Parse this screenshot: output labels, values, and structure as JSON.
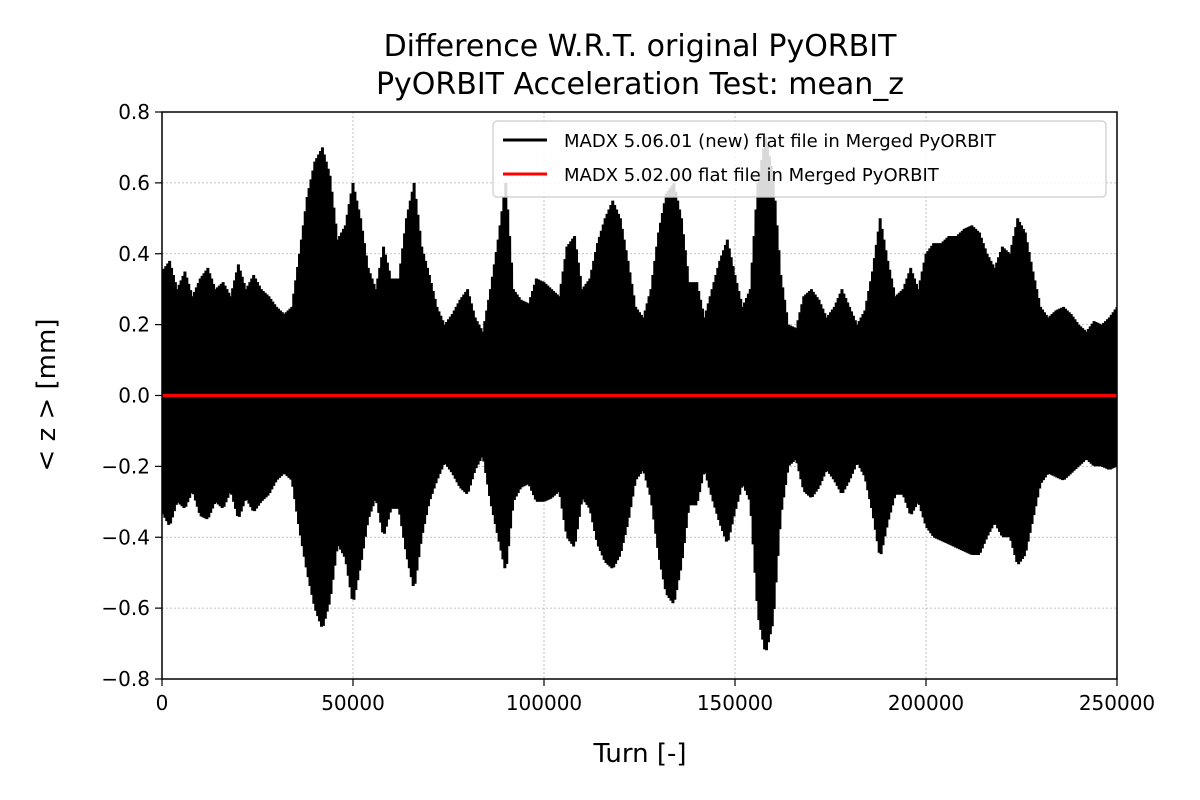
{
  "chart_data": {
    "type": "line",
    "title": "Difference W.R.T. original PyORBIT",
    "subtitle": "PyORBIT Acceleration Test: mean_z",
    "xlabel": "Turn [-]",
    "ylabel": "< z >  [mm]",
    "xlim": [
      0,
      250000
    ],
    "ylim": [
      -0.8,
      0.8
    ],
    "x_ticks": [
      0,
      50000,
      100000,
      150000,
      200000,
      250000
    ],
    "x_tick_labels": [
      "0",
      "50000",
      "100000",
      "150000",
      "200000",
      "250000"
    ],
    "y_ticks": [
      -0.8,
      -0.6,
      -0.4,
      -0.2,
      0.0,
      0.2,
      0.4,
      0.6,
      0.8
    ],
    "y_tick_labels": [
      "−0.8",
      "−0.6",
      "−0.4",
      "−0.2",
      "0.0",
      "0.2",
      "0.4",
      "0.6",
      "0.8"
    ],
    "grid": true,
    "legend_position": "top-right",
    "series": [
      {
        "name": "MADX 5.06.01 (new) flat file in Merged PyORBIT",
        "color": "#000000",
        "style": "oscillation-envelope",
        "envelope": {
          "x": [
            0,
            2000,
            4000,
            6000,
            8000,
            10000,
            12000,
            14000,
            16000,
            18000,
            20000,
            22000,
            24000,
            26000,
            28000,
            30000,
            32000,
            34000,
            36000,
            38000,
            40000,
            42000,
            44000,
            46000,
            48000,
            50000,
            52000,
            54000,
            56000,
            58000,
            60000,
            62000,
            64000,
            66000,
            68000,
            70000,
            72000,
            74000,
            76000,
            78000,
            80000,
            82000,
            84000,
            86000,
            88000,
            90000,
            92000,
            94000,
            96000,
            98000,
            100000,
            102000,
            104000,
            106000,
            108000,
            110000,
            112000,
            114000,
            116000,
            118000,
            120000,
            122000,
            124000,
            126000,
            128000,
            130000,
            132000,
            134000,
            136000,
            138000,
            140000,
            142000,
            144000,
            146000,
            148000,
            150000,
            152000,
            154000,
            156000,
            158000,
            160000,
            162000,
            164000,
            166000,
            168000,
            170000,
            172000,
            174000,
            176000,
            178000,
            180000,
            182000,
            184000,
            186000,
            188000,
            190000,
            192000,
            194000,
            196000,
            198000,
            200000,
            202000,
            204000,
            206000,
            208000,
            210000,
            212000,
            214000,
            216000,
            218000,
            220000,
            222000,
            224000,
            226000,
            228000,
            230000,
            232000,
            234000,
            236000,
            238000,
            240000,
            242000,
            244000,
            246000,
            248000,
            250000
          ],
          "upper": [
            0.35,
            0.38,
            0.3,
            0.35,
            0.28,
            0.33,
            0.36,
            0.3,
            0.32,
            0.28,
            0.37,
            0.3,
            0.34,
            0.3,
            0.28,
            0.25,
            0.23,
            0.25,
            0.4,
            0.56,
            0.66,
            0.7,
            0.62,
            0.44,
            0.48,
            0.6,
            0.5,
            0.36,
            0.3,
            0.42,
            0.33,
            0.33,
            0.5,
            0.6,
            0.42,
            0.34,
            0.25,
            0.2,
            0.23,
            0.27,
            0.3,
            0.22,
            0.18,
            0.3,
            0.44,
            0.6,
            0.3,
            0.27,
            0.26,
            0.33,
            0.32,
            0.3,
            0.28,
            0.42,
            0.45,
            0.3,
            0.33,
            0.43,
            0.5,
            0.55,
            0.5,
            0.38,
            0.25,
            0.22,
            0.3,
            0.46,
            0.57,
            0.6,
            0.5,
            0.32,
            0.32,
            0.22,
            0.3,
            0.38,
            0.44,
            0.34,
            0.25,
            0.3,
            0.6,
            0.73,
            0.62,
            0.34,
            0.2,
            0.19,
            0.28,
            0.3,
            0.27,
            0.22,
            0.25,
            0.3,
            0.25,
            0.2,
            0.24,
            0.35,
            0.5,
            0.38,
            0.28,
            0.3,
            0.36,
            0.3,
            0.4,
            0.43,
            0.43,
            0.45,
            0.45,
            0.47,
            0.48,
            0.46,
            0.4,
            0.36,
            0.42,
            0.4,
            0.5,
            0.46,
            0.35,
            0.25,
            0.22,
            0.24,
            0.25,
            0.23,
            0.2,
            0.18,
            0.21,
            0.2,
            0.22,
            0.25
          ],
          "lower": [
            -0.33,
            -0.37,
            -0.3,
            -0.32,
            -0.27,
            -0.34,
            -0.35,
            -0.3,
            -0.32,
            -0.27,
            -0.35,
            -0.29,
            -0.33,
            -0.3,
            -0.28,
            -0.24,
            -0.22,
            -0.24,
            -0.38,
            -0.5,
            -0.6,
            -0.66,
            -0.58,
            -0.42,
            -0.46,
            -0.59,
            -0.48,
            -0.35,
            -0.29,
            -0.4,
            -0.32,
            -0.32,
            -0.45,
            -0.55,
            -0.4,
            -0.3,
            -0.24,
            -0.19,
            -0.22,
            -0.26,
            -0.28,
            -0.21,
            -0.17,
            -0.3,
            -0.4,
            -0.5,
            -0.3,
            -0.26,
            -0.25,
            -0.3,
            -0.3,
            -0.29,
            -0.27,
            -0.4,
            -0.43,
            -0.29,
            -0.32,
            -0.42,
            -0.47,
            -0.49,
            -0.45,
            -0.36,
            -0.24,
            -0.21,
            -0.29,
            -0.45,
            -0.56,
            -0.59,
            -0.48,
            -0.31,
            -0.31,
            -0.21,
            -0.29,
            -0.36,
            -0.42,
            -0.33,
            -0.25,
            -0.3,
            -0.62,
            -0.73,
            -0.64,
            -0.34,
            -0.2,
            -0.18,
            -0.27,
            -0.29,
            -0.26,
            -0.21,
            -0.24,
            -0.28,
            -0.24,
            -0.19,
            -0.23,
            -0.33,
            -0.46,
            -0.36,
            -0.28,
            -0.28,
            -0.34,
            -0.3,
            -0.37,
            -0.4,
            -0.41,
            -0.42,
            -0.43,
            -0.44,
            -0.45,
            -0.45,
            -0.4,
            -0.36,
            -0.4,
            -0.4,
            -0.48,
            -0.45,
            -0.35,
            -0.25,
            -0.22,
            -0.23,
            -0.24,
            -0.22,
            -0.2,
            -0.18,
            -0.2,
            -0.2,
            -0.21,
            -0.2
          ]
        }
      },
      {
        "name": "MADX 5.02.00 flat file in Merged PyORBIT",
        "color": "#ff0000",
        "style": "line",
        "x": [
          0,
          250000
        ],
        "y": [
          0.0,
          0.0
        ]
      }
    ]
  }
}
